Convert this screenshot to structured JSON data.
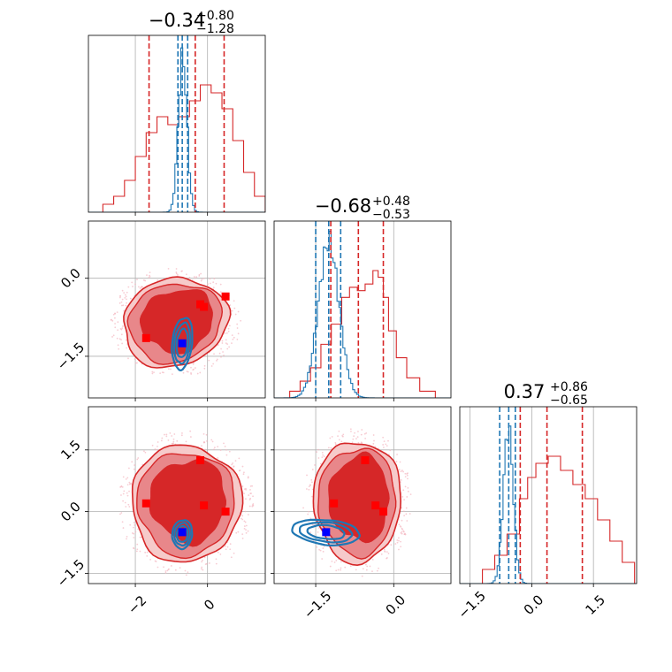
{
  "figure": {
    "panel_titles": [
      {
        "value": "−0.34",
        "upper": "+0.80",
        "lower": "−1.28"
      },
      {
        "value": "−0.68",
        "upper": "+0.48",
        "lower": "−0.53"
      },
      {
        "value": "0.37",
        "upper": "+0.86",
        "lower": "−0.65"
      }
    ],
    "x_tick_labels": {
      "p0": [
        "−2",
        "0"
      ],
      "p1": [
        "−1.5",
        "0.0"
      ],
      "p2": [
        "−1.5",
        "0.0",
        "1.5"
      ]
    },
    "y_tick_labels": {
      "p1": [
        "0.0",
        "−1.5"
      ],
      "p2": [
        "1.5",
        "0.0",
        "−1.5"
      ]
    }
  },
  "colors": {
    "red": "#d62728",
    "red_mid": "#e8878a",
    "red_light": "#f6caca",
    "red_scatter": "#f4b6c0",
    "blue": "#1f77b4",
    "marker_red": "#ff0000",
    "marker_blue": "#0000ff",
    "grid": "#b0b0b0"
  },
  "chart_data": [
    {
      "type": "corner",
      "parameters": [
        "p0",
        "p1",
        "p2"
      ],
      "ranges": {
        "p0": [
          -3.3,
          1.6
        ],
        "p1": [
          -2.3,
          1.1
        ],
        "p2": [
          -1.75,
          2.55
        ]
      },
      "grid": true,
      "series": [
        {
          "role": "broad posterior (red)",
          "quantiles": {
            "p0": [
              -1.62,
              -0.34,
              0.46
            ],
            "p1": [
              -1.21,
              -0.68,
              -0.2
            ],
            "p2": [
              -0.28,
              0.37,
              1.23
            ]
          },
          "histograms": {
            "p0": [
              [
                -3.3,
                0.0
              ],
              [
                -2.9,
                0.01
              ],
              [
                -2.6,
                0.02
              ],
              [
                -2.3,
                0.04
              ],
              [
                -2.0,
                0.07
              ],
              [
                -1.7,
                0.1
              ],
              [
                -1.4,
                0.12
              ],
              [
                -1.1,
                0.11
              ],
              [
                -0.8,
                0.12
              ],
              [
                -0.5,
                0.14
              ],
              [
                -0.2,
                0.16
              ],
              [
                0.1,
                0.15
              ],
              [
                0.4,
                0.13
              ],
              [
                0.7,
                0.09
              ],
              [
                1.0,
                0.05
              ],
              [
                1.3,
                0.02
              ],
              [
                1.6,
                0.0
              ]
            ],
            "p1": [
              [
                -2.25,
                0.0
              ],
              [
                -2.0,
                0.02
              ],
              [
                -1.8,
                0.05
              ],
              [
                -1.6,
                0.09
              ],
              [
                -1.4,
                0.16
              ],
              [
                -1.2,
                0.22
              ],
              [
                -1.0,
                0.3
              ],
              [
                -0.85,
                0.33
              ],
              [
                -0.7,
                0.32
              ],
              [
                -0.55,
                0.34
              ],
              [
                -0.4,
                0.38
              ],
              [
                -0.3,
                0.36
              ],
              [
                -0.2,
                0.3
              ],
              [
                -0.1,
                0.2
              ],
              [
                0.05,
                0.12
              ],
              [
                0.25,
                0.06
              ],
              [
                0.5,
                0.02
              ],
              [
                0.8,
                0.0
              ]
            ],
            "p2": [
              [
                -1.55,
                0.0
              ],
              [
                -1.2,
                0.02
              ],
              [
                -0.9,
                0.04
              ],
              [
                -0.6,
                0.07
              ],
              [
                -0.3,
                0.12
              ],
              [
                -0.1,
                0.15
              ],
              [
                0.1,
                0.17
              ],
              [
                0.4,
                0.18
              ],
              [
                0.7,
                0.16
              ],
              [
                1.0,
                0.14
              ],
              [
                1.3,
                0.12
              ],
              [
                1.6,
                0.09
              ],
              [
                1.9,
                0.06
              ],
              [
                2.2,
                0.03
              ],
              [
                2.5,
                0.0
              ]
            ]
          },
          "contours_2d": {
            "p0_p1": {
              "center": [
                -0.9,
                -0.85
              ],
              "size": [
                2.8,
                1.6
              ],
              "tilt": -0.3
            },
            "p0_p2": {
              "center": [
                -0.6,
                0.2
              ],
              "size": [
                2.9,
                2.7
              ],
              "tilt": 0.0
            },
            "p1_p2": {
              "center": [
                -0.7,
                0.25
              ],
              "size": [
                1.6,
                2.8
              ],
              "tilt": 0.0
            }
          }
        },
        {
          "role": "narrow posterior (blue)",
          "quantiles": {
            "p0": [
              -0.82,
              -0.7,
              -0.55
            ],
            "p1": [
              -1.5,
              -1.25,
              -1.02
            ],
            "p2": [
              -0.78,
              -0.56,
              -0.4
            ]
          },
          "histograms": {
            "p0": {
              "mean": -0.69,
              "sd": 0.12,
              "peak": 1.0
            },
            "p1": {
              "mean": -1.25,
              "sd": 0.2,
              "peak": 1.0
            },
            "p2": {
              "mean": -0.57,
              "sd": 0.12,
              "peak": 1.0
            }
          },
          "contours_2d": {
            "p0_p1": {
              "center": [
                -0.7,
                -1.25
              ],
              "size": [
                0.55,
                1.0
              ]
            },
            "p0_p2": {
              "center": [
                -0.7,
                -0.55
              ],
              "size": [
                0.55,
                0.7
              ]
            },
            "p1_p2": {
              "center": [
                -1.3,
                -0.5
              ],
              "size": [
                1.3,
                0.6
              ]
            }
          }
        }
      ],
      "markers": {
        "red_squares": {
          "p0_p1": [
            [
              -1.7,
              -1.15
            ],
            [
              -0.2,
              -0.5
            ],
            [
              -0.1,
              -0.55
            ],
            [
              0.5,
              -0.35
            ]
          ],
          "p0_p2": [
            [
              -1.7,
              0.2
            ],
            [
              -0.2,
              1.25
            ],
            [
              -0.1,
              0.15
            ],
            [
              0.5,
              0.0
            ]
          ],
          "p1_p2": [
            [
              -1.15,
              0.2
            ],
            [
              -0.55,
              1.25
            ],
            [
              -0.35,
              0.15
            ],
            [
              -0.2,
              0.0
            ]
          ]
        },
        "blue_squares": {
          "p0_p1": [
            [
              -0.7,
              -1.25
            ]
          ],
          "p0_p2": [
            [
              -0.7,
              -0.5
            ]
          ],
          "p1_p2": [
            [
              -1.3,
              -0.5
            ]
          ]
        }
      }
    }
  ]
}
